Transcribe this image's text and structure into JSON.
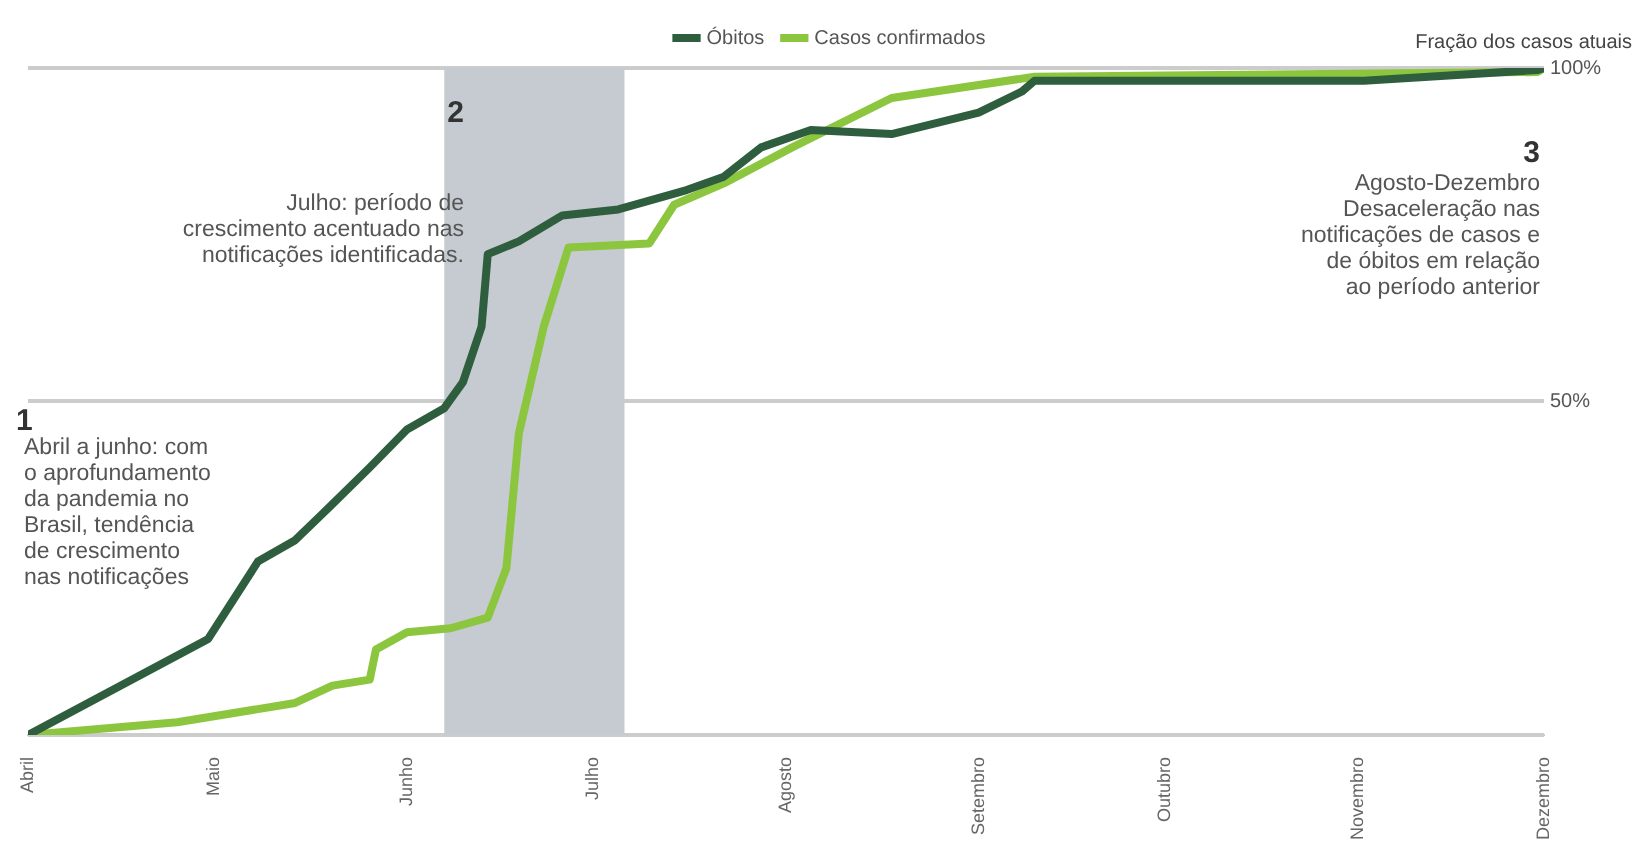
{
  "chart_data": {
    "type": "line",
    "ylabel": "Fração dos casos atuais",
    "xlim": [
      "--04-01",
      "--12-01"
    ],
    "xticks": [
      {
        "value": "--04-01",
        "label": "Abril"
      },
      {
        "value": "--05-01",
        "label": "Maio"
      },
      {
        "value": "--06-01",
        "label": "Junho"
      },
      {
        "value": "--07-01",
        "label": "Julho"
      },
      {
        "value": "--08-01",
        "label": "Agosto"
      },
      {
        "value": "--09-01",
        "label": "Setembro"
      },
      {
        "value": "--10-01",
        "label": "Outubro"
      },
      {
        "value": "--11-01",
        "label": "Novembro"
      },
      {
        "value": "--12-01",
        "label": "Dezembro"
      }
    ],
    "ylim": [
      0,
      100
    ],
    "yticks": [
      {
        "value": 0,
        "label": null
      },
      {
        "value": 50,
        "label": "50%"
      },
      {
        "value": 100,
        "label": "100%"
      }
    ],
    "grid": "y",
    "legend": "top",
    "marker": "none",
    "line_style": "solid",
    "bands": [
      {
        "axis": "x",
        "from": "--06-07",
        "to": "--07-06",
        "color": "#c5cbd0"
      }
    ],
    "series": [
      {
        "name": "Óbitos",
        "color": "#2f5e3e",
        "x": [
          "--04-01",
          "--04-30",
          "--05-08",
          "--05-14",
          "--05-19",
          "--05-26",
          "--06-01",
          "--06-07",
          "--06-10",
          "--06-13",
          "--06-14",
          "--06-19",
          "--06-26",
          "--07-05",
          "--07-16",
          "--07-22",
          "--07-28",
          "--08-05",
          "--08-18",
          "--09-01",
          "--09-08",
          "--09-10",
          "--11-02",
          "--11-30",
          "--12-01"
        ],
        "values": [
          0,
          14.4,
          26,
          29.2,
          33.7,
          40.1,
          45.8,
          49,
          52.9,
          61.2,
          72.1,
          74,
          77.9,
          78.8,
          81.7,
          83.7,
          88.1,
          90.7,
          90.1,
          93.3,
          96.5,
          98.1,
          98.1,
          99.7,
          100
        ]
      },
      {
        "name": "Casos confirmados",
        "color": "#8cc63f",
        "x": [
          "--04-01",
          "--04-25",
          "--05-14",
          "--05-20",
          "--05-26",
          "--05-27",
          "--06-01",
          "--06-08",
          "--06-14",
          "--06-17",
          "--06-19",
          "--06-23",
          "--06-27",
          "--07-10",
          "--07-14",
          "--07-22",
          "--08-02",
          "--08-18",
          "--09-10",
          "--11-30",
          "--12-01"
        ],
        "values": [
          0,
          1.9,
          4.8,
          7.4,
          8.3,
          12.8,
          15.4,
          16,
          17.6,
          25,
          45.2,
          61.2,
          73.1,
          73.7,
          79.5,
          82.7,
          88.1,
          95.5,
          98.7,
          99.4,
          100
        ]
      }
    ],
    "annotations": [
      "2",
      "Julho: período de\ncrescimento acentuado nas\nnotificações identificadas.",
      "1",
      "Abril a junho: com\no aprofundamento\nda pandemia no\nBrasil, tendência\nde crescimento\nnas notificações",
      "3",
      "Agosto-Dezembro\nDesaceleração nas\nnotificações de casos e\nde óbitos em relação\nao período anterior"
    ]
  }
}
